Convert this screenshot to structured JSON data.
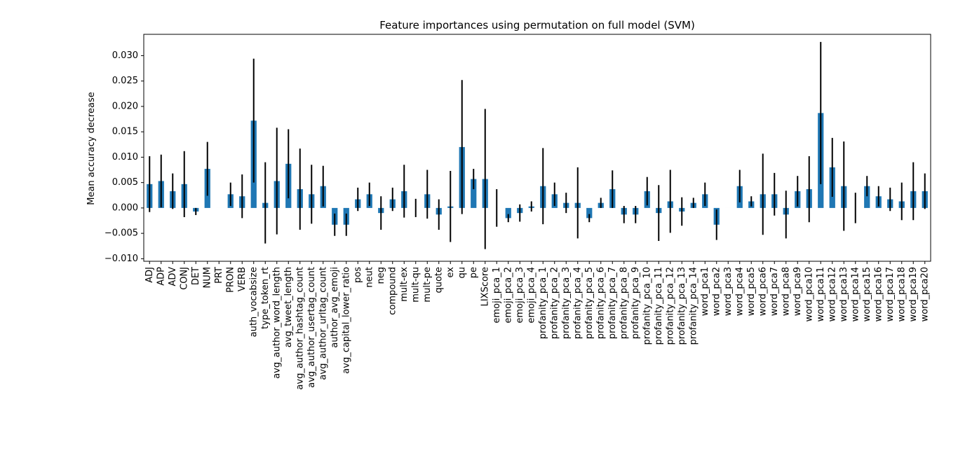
{
  "chart_data": {
    "type": "bar",
    "title": "Feature importances using permutation on full model (SVM)",
    "xlabel": "",
    "ylabel": "Mean accuracy decrease",
    "ylim": [
      -0.0105,
      0.0342
    ],
    "yticks": [
      -0.01,
      -0.005,
      0.0,
      0.005,
      0.01,
      0.015,
      0.02,
      0.025,
      0.03
    ],
    "ytick_labels": [
      "−0.010",
      "−0.005",
      "0.000",
      "0.005",
      "0.010",
      "0.015",
      "0.020",
      "0.025",
      "0.030"
    ],
    "grid": false,
    "bar_color": "#1f77b4",
    "error_color": "#000000",
    "categories": [
      "ADJ",
      "ADP",
      "ADV",
      "CONJ",
      "DET",
      "NUM",
      "PRT",
      "PRON",
      "VERB",
      "auth_vocabsize",
      "type_token_rt",
      "avg_author_word_length",
      "avg_tweet_length",
      "avg_author_hashtag_count",
      "avg_author_usertag_count",
      "avg_author_urltag_count",
      "author_avg_emoji",
      "avg_capital_lower_ratio",
      "pos",
      "neut",
      "neg",
      "compound",
      "mult-ex",
      "mult-qu",
      "mult-pe",
      "quote",
      "ex",
      "qu",
      "pe",
      "LIXScore",
      "emoji_pca_1",
      "emoji_pca_2",
      "emoji_pca_3",
      "emoji_pca_4",
      "profanity_pca_1",
      "profanity_pca_2",
      "profanity_pca_3",
      "profanity_pca_4",
      "profanity_pca_5",
      "profanity_pca_6",
      "profanity_pca_7",
      "profanity_pca_8",
      "profanity_pca_9",
      "profanity_pca_10",
      "profanity_pca_11",
      "profanity_pca_12",
      "profanity_pca_13",
      "profanity_pca_14",
      "word_pca1",
      "word_pca2",
      "word_pca3",
      "word_pca4",
      "word_pca5",
      "word_pca6",
      "word_pca7",
      "word_pca8",
      "word_pca9",
      "word_pca10",
      "word_pca11",
      "word_pca12",
      "word_pca13",
      "word_pca14",
      "word_pca15",
      "word_pca16",
      "word_pca17",
      "word_pca18",
      "word_pca19",
      "word_pca20"
    ],
    "values": [
      0.0047,
      0.0053,
      0.0033,
      0.0047,
      -0.0007,
      0.0077,
      0.0,
      0.0027,
      0.0023,
      0.0172,
      0.001,
      0.0053,
      0.0087,
      0.0037,
      0.0027,
      0.0043,
      -0.0033,
      -0.0033,
      0.0017,
      0.0027,
      -0.001,
      0.0017,
      0.0033,
      0.0,
      0.0027,
      -0.0013,
      0.0003,
      0.012,
      0.0057,
      0.0057,
      0.0,
      -0.002,
      -0.001,
      0.0003,
      0.0043,
      0.0027,
      0.001,
      0.001,
      -0.002,
      0.001,
      0.0037,
      -0.0013,
      -0.0013,
      0.0033,
      -0.001,
      0.0013,
      -0.0007,
      0.001,
      0.0027,
      -0.0033,
      0.0,
      0.0043,
      0.0013,
      0.0027,
      0.0027,
      -0.0013,
      0.0033,
      0.0037,
      0.0187,
      0.008,
      0.0043,
      0.0,
      0.0043,
      0.0023,
      0.0017,
      0.0013,
      0.0033,
      0.0033
    ],
    "errors": [
      0.0055,
      0.0052,
      0.0035,
      0.0065,
      0.0007,
      0.0053,
      0.0,
      0.0023,
      0.0043,
      0.0122,
      0.008,
      0.0105,
      0.0068,
      0.008,
      0.0058,
      0.004,
      0.0022,
      0.0022,
      0.0023,
      0.0023,
      0.0033,
      0.0023,
      0.0052,
      0.0018,
      0.0048,
      0.003,
      0.007,
      0.0132,
      0.002,
      0.0138,
      0.0037,
      0.0008,
      0.0017,
      0.001,
      0.0075,
      0.0023,
      0.002,
      0.007,
      0.0008,
      0.001,
      0.0037,
      0.0017,
      0.0017,
      0.0028,
      0.0055,
      0.0062,
      0.0028,
      0.001,
      0.0023,
      0.003,
      0.0,
      0.0032,
      0.001,
      0.008,
      0.0042,
      0.0047,
      0.003,
      0.0065,
      0.014,
      0.0058,
      0.0088,
      0.003,
      0.002,
      0.002,
      0.0023,
      0.0037,
      0.0057,
      0.0035
    ]
  }
}
